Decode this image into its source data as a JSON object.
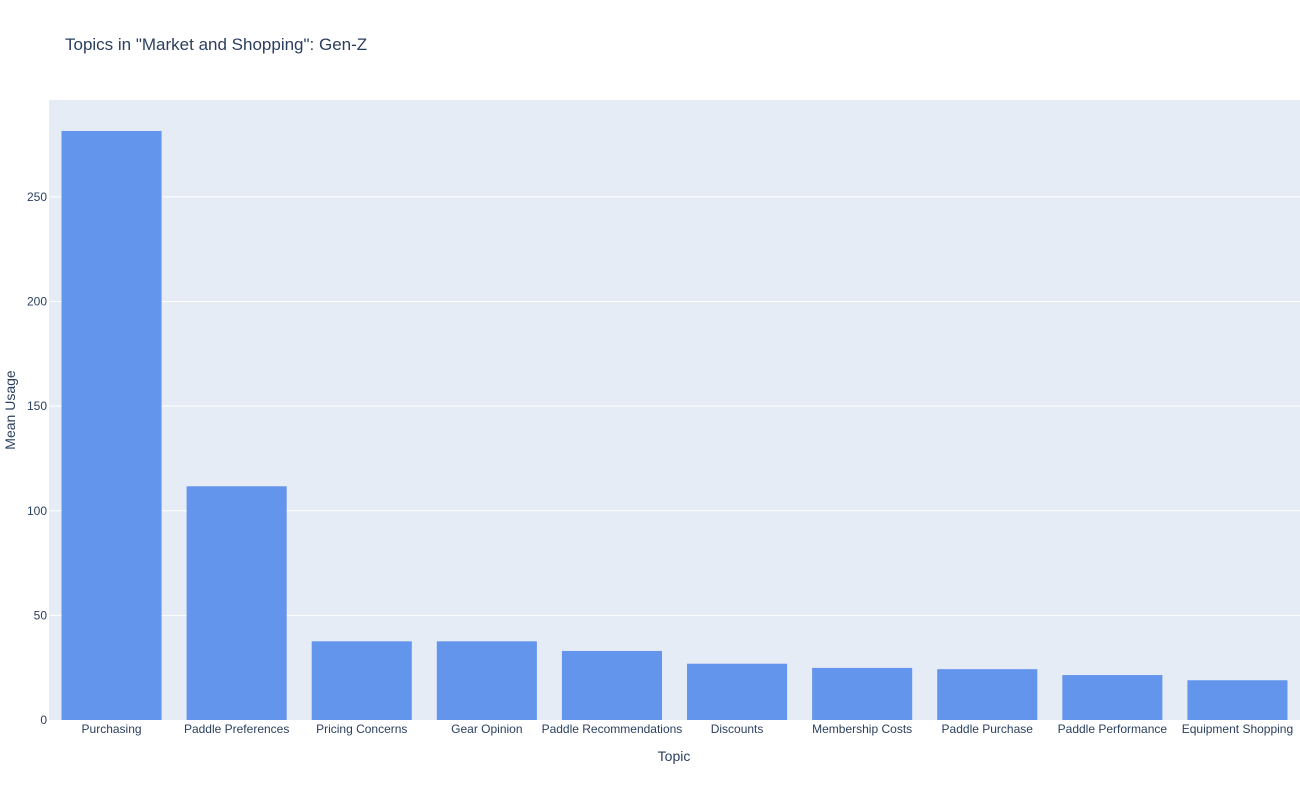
{
  "chart_data": {
    "type": "bar",
    "title": "Topics in \"Market and Shopping\": Gen-Z",
    "xlabel": "Topic",
    "ylabel": "Mean Usage",
    "categories": [
      "Purchasing",
      "Paddle Preferences",
      "Pricing Concerns",
      "Gear Opinion",
      "Paddle Recommendations",
      "Discounts",
      "Membership Costs",
      "Paddle Purchase",
      "Paddle Performance",
      "Equipment Shopping"
    ],
    "values": [
      281.5,
      111.7,
      37.6,
      37.6,
      33.0,
      26.9,
      24.9,
      24.3,
      21.5,
      19.0
    ],
    "ylim": [
      0,
      296.3
    ],
    "yticks": [
      0,
      50,
      100,
      150,
      200,
      250
    ],
    "grid": true,
    "legend": "none",
    "colors": {
      "bar": "#6495ed",
      "plot_background": "#e5ecf6",
      "grid": "#ffffff",
      "text": "#2a3f5f"
    }
  }
}
